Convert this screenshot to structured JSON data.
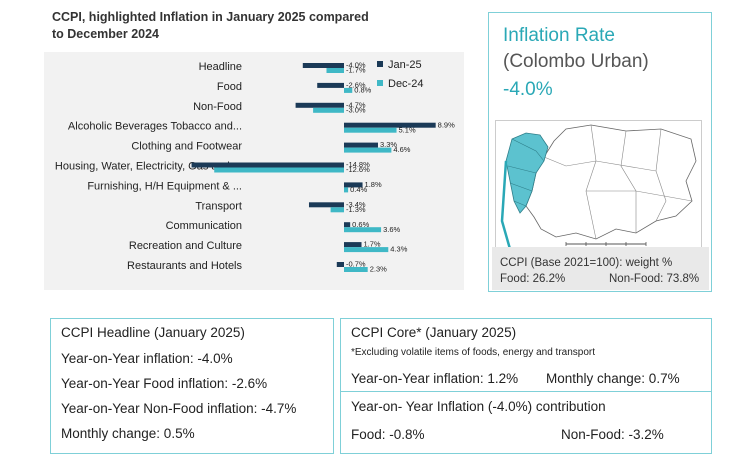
{
  "chart_data": {
    "type": "bar",
    "orientation": "horizontal",
    "title": "CCPI, highlighted Inflation in January 2025 compared to December 2024",
    "categories": [
      "Headline",
      "Food",
      "Non-Food",
      "Alcoholic Beverages Tobacco and...",
      "Clothing and Footwear",
      "Housing, Water, Electricity, Gas and ...",
      "Furnishing, H/H Equipment & ...",
      "Transport",
      "Communication",
      "Recreation and Culture",
      "Restaurants and Hotels"
    ],
    "series": [
      {
        "name": "Jan-25",
        "color": "#1b3a57",
        "values": [
          -4.0,
          -2.6,
          -4.7,
          8.9,
          3.3,
          -14.8,
          1.8,
          -3.4,
          0.6,
          1.7,
          -0.7
        ],
        "labels": [
          "-4.0%",
          "-2.6%",
          "-4.7%",
          "8.9%",
          "3.3%",
          "-14.8%",
          "1.8%",
          "-3.4%",
          "0.6%",
          "1.7%",
          "-0.7%"
        ]
      },
      {
        "name": "Dec-24",
        "color": "#3fb8c6",
        "values": [
          -1.7,
          0.8,
          -3.0,
          5.1,
          4.6,
          -12.6,
          0.4,
          -1.3,
          3.6,
          4.3,
          2.3
        ],
        "labels": [
          "-1.7%",
          "0.8%",
          "-3.0%",
          "5.1%",
          "4.6%",
          "-12.6%",
          "0.4%",
          "-1.3%",
          "3.6%",
          "4.3%",
          "2.3%"
        ]
      }
    ],
    "legend": "top-right"
  },
  "inflation_panel": {
    "title": "Inflation Rate",
    "subtitle": "(Colombo Urban)",
    "value": "-4.0%",
    "weight_label": "CCPI (Base 2021=100): weight %",
    "food_weight": "Food: 26.2%",
    "nonfood_weight": "Non-Food: 73.8%"
  },
  "headline_box": {
    "title": "CCPI Headline (January 2025)",
    "lines": [
      "Year-on-Year inflation: -4.0%",
      "Year-on-Year Food inflation: -2.6%",
      "Year-on-Year Non-Food inflation: -4.7%",
      "Monthly change:  0.5%"
    ]
  },
  "core_box": {
    "title": "CCPI Core* (January 2025)",
    "note": "*Excluding volatile items of foods, energy and transport",
    "yoy": "Year-on-Year inflation: 1.2%",
    "monthly": "Monthly change:  0.7%"
  },
  "contribution_box": {
    "title": "Year-on- Year Inflation (-4.0%) contribution",
    "food": "Food:  -0.8%",
    "nonfood": "Non-Food: -3.2%"
  },
  "colors": {
    "jan": "#1b3a57",
    "dec": "#3fb8c6",
    "accent": "#2aa8b6",
    "border": "#7fd0d8"
  }
}
